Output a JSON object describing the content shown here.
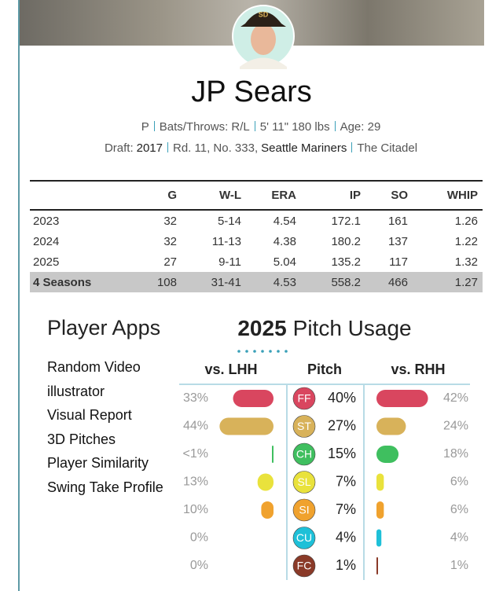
{
  "player": {
    "name": "JP Sears",
    "bio": [
      [
        "P"
      ],
      [
        "Bats/Throws: R/L"
      ],
      [
        "5' 11\" 180 lbs"
      ],
      [
        "Age: 29"
      ]
    ],
    "draft": [
      [
        "Draft:",
        "2017"
      ],
      [
        "Rd. 11, No. 333,",
        "Seattle Mariners"
      ],
      [
        "The Citadel"
      ]
    ]
  },
  "stats": {
    "headers": [
      "G",
      "W-L",
      "ERA",
      "IP",
      "SO",
      "WHIP"
    ],
    "rows": [
      [
        "2023",
        32,
        "5-14",
        4.54,
        172.1,
        161,
        1.26
      ],
      [
        "2024",
        32,
        "11-13",
        4.38,
        180.2,
        137,
        1.22
      ],
      [
        "2025",
        27,
        "9-11",
        5.04,
        135.2,
        117,
        1.32
      ],
      [
        "4 Seasons",
        108,
        "31-41",
        4.53,
        558.2,
        466,
        1.27
      ]
    ]
  },
  "player_apps": {
    "title": "Player Apps",
    "links": [
      "Random Video",
      "illustrator",
      "Visual Report",
      "3D Pitches",
      "Player Similarity",
      "Swing Take Profile"
    ]
  },
  "pitch_usage": {
    "year": "2025",
    "title": "Pitch Usage",
    "columns": [
      "vs. LHH",
      "Pitch",
      "vs. RHH"
    ],
    "rows": [
      {
        "code": "FF",
        "color": "#d9465f",
        "lhh": {
          "value": 33,
          "label": "33%"
        },
        "usage": {
          "value": 40,
          "label": "40%"
        },
        "rhh": {
          "value": 42,
          "label": "42%"
        }
      },
      {
        "code": "ST",
        "color": "#d8b25a",
        "lhh": {
          "value": 44,
          "label": "44%"
        },
        "usage": {
          "value": 27,
          "label": "27%"
        },
        "rhh": {
          "value": 24,
          "label": "24%"
        }
      },
      {
        "code": "CH",
        "color": "#3fbf5f",
        "lhh": {
          "value": 0.5,
          "label": "<1%"
        },
        "usage": {
          "value": 15,
          "label": "15%"
        },
        "rhh": {
          "value": 18,
          "label": "18%"
        }
      },
      {
        "code": "SL",
        "color": "#e9e23c",
        "lhh": {
          "value": 13,
          "label": "13%"
        },
        "usage": {
          "value": 7,
          "label": "7%"
        },
        "rhh": {
          "value": 6,
          "label": "6%"
        }
      },
      {
        "code": "SI",
        "color": "#f0a22e",
        "lhh": {
          "value": 10,
          "label": "10%"
        },
        "usage": {
          "value": 7,
          "label": "7%"
        },
        "rhh": {
          "value": 6,
          "label": "6%"
        }
      },
      {
        "code": "CU",
        "color": "#1ec0d8",
        "lhh": {
          "value": 0,
          "label": "0%"
        },
        "usage": {
          "value": 4,
          "label": "4%"
        },
        "rhh": {
          "value": 4,
          "label": "4%"
        }
      },
      {
        "code": "FC",
        "color": "#8a3a28",
        "lhh": {
          "value": 0,
          "label": "0%"
        },
        "usage": {
          "value": 1,
          "label": "1%"
        },
        "rhh": {
          "value": 1,
          "label": "1%"
        }
      }
    ]
  }
}
